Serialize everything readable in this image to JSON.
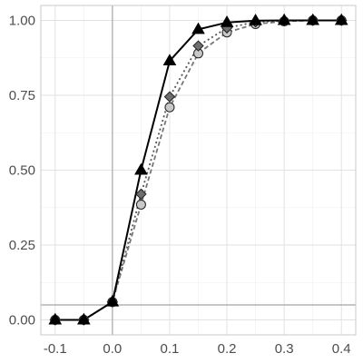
{
  "chart_data": {
    "type": "line",
    "title": "",
    "xlabel": "",
    "ylabel": "",
    "xlim": [
      -0.125,
      0.425
    ],
    "ylim": [
      -0.05,
      1.05
    ],
    "x_ticks": [
      -0.1,
      0.0,
      0.1,
      0.2,
      0.3,
      0.4
    ],
    "x_tick_labels": [
      "-0.1",
      "0.0",
      "0.1",
      "0.2",
      "0.3",
      "0.4"
    ],
    "y_ticks": [
      0.0,
      0.25,
      0.5,
      0.75,
      1.0
    ],
    "y_tick_labels": [
      "0.00",
      "0.25",
      "0.50",
      "0.75",
      "1.00"
    ],
    "reference_lines": {
      "vertical_x": 0.0,
      "horizontal_y": 0.05
    },
    "grid": true,
    "legend": "none",
    "x": [
      -0.1,
      -0.05,
      0.0,
      0.05,
      0.1,
      0.15,
      0.2,
      0.25,
      0.3,
      0.35,
      0.4
    ],
    "series": [
      {
        "marker": "triangle",
        "line_style": "solid",
        "line_color": "#000000",
        "marker_color": "#000000",
        "values": [
          0.0,
          0.0,
          0.06,
          0.5,
          0.865,
          0.97,
          0.993,
          0.999,
          1.0,
          1.0,
          1.0
        ]
      },
      {
        "marker": "diamond",
        "line_style": "dotted",
        "line_color": "#555555",
        "marker_color": "#6e6e6e",
        "values": [
          0.0,
          0.0,
          0.06,
          0.42,
          0.745,
          0.915,
          0.975,
          0.995,
          0.999,
          1.0,
          1.0
        ]
      },
      {
        "marker": "circle",
        "line_style": "dashed",
        "line_color": "#777777",
        "marker_color": "#c8c8c8",
        "values": [
          0.0,
          0.0,
          0.06,
          0.385,
          0.71,
          0.89,
          0.96,
          0.988,
          0.997,
          1.0,
          1.0
        ]
      }
    ]
  }
}
